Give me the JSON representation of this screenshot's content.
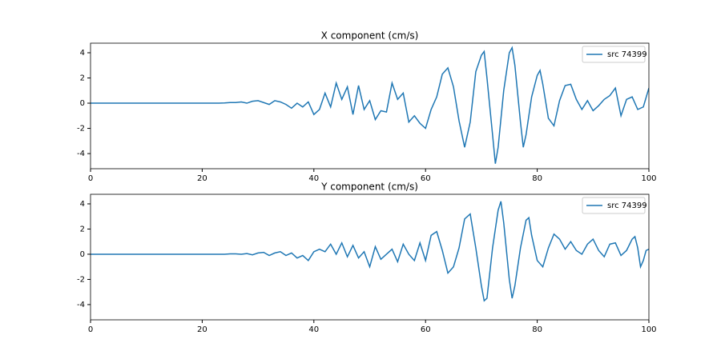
{
  "chart_data": [
    {
      "type": "line",
      "title": "X component (cm/s)",
      "x": [
        0,
        20,
        21,
        22,
        23,
        24,
        25,
        26,
        27,
        28,
        29,
        30,
        31,
        32,
        33,
        34,
        35,
        36,
        37,
        38,
        39,
        40,
        41,
        42,
        43,
        44,
        45,
        46,
        47,
        48,
        49,
        50,
        51,
        52,
        53,
        54,
        55,
        56,
        57,
        58,
        59,
        60,
        61,
        62,
        63,
        64,
        65,
        66,
        67,
        68,
        69,
        70,
        70.5,
        71,
        72,
        72.5,
        73,
        74,
        75,
        75.5,
        76,
        77,
        77.5,
        78,
        79,
        80,
        80.5,
        81,
        82,
        83,
        84,
        85,
        86,
        87,
        88,
        89,
        90,
        91,
        92,
        93,
        94,
        95,
        96,
        97,
        98,
        99,
        100
      ],
      "series": [
        {
          "name": "src 74399",
          "color": "#1f77b4",
          "values": [
            0,
            0,
            0,
            0,
            0,
            0.02,
            0.05,
            0.05,
            0.1,
            0,
            0.15,
            0.2,
            0.05,
            -0.1,
            0.2,
            0.1,
            -0.1,
            -0.4,
            0,
            -0.3,
            0.1,
            -0.9,
            -0.5,
            0.8,
            -0.3,
            1.6,
            0.3,
            1.3,
            -0.9,
            1.4,
            -0.5,
            0.2,
            -1.3,
            -0.6,
            -0.7,
            1.6,
            0.3,
            0.8,
            -1.5,
            -1.0,
            -1.6,
            -2.0,
            -0.5,
            0.5,
            2.3,
            2.8,
            1.3,
            -1.4,
            -3.5,
            -1.5,
            2.5,
            3.8,
            4.1,
            2.0,
            -2.5,
            -4.8,
            -3.5,
            1.0,
            4.0,
            4.4,
            3.0,
            -1.5,
            -3.5,
            -2.5,
            0.5,
            2.2,
            2.6,
            1.5,
            -1.2,
            -1.8,
            0.2,
            1.4,
            1.5,
            0.3,
            -0.5,
            0.2,
            -0.6,
            -0.2,
            0.3,
            0.6,
            1.2,
            -1.0,
            0.3,
            0.5,
            -0.5,
            -0.3,
            1.2
          ]
        }
      ],
      "xlim": [
        0,
        100
      ],
      "xticks": [
        0,
        20,
        40,
        60,
        80,
        100
      ],
      "ylim": [
        -5.2,
        4.76
      ],
      "yticks": [
        -4,
        -2,
        0,
        2,
        4
      ],
      "legend": "upper right"
    },
    {
      "type": "line",
      "title": "Y component (cm/s)",
      "x": [
        0,
        20,
        21,
        22,
        23,
        24,
        25,
        26,
        27,
        28,
        29,
        30,
        31,
        32,
        33,
        34,
        35,
        36,
        37,
        38,
        39,
        40,
        41,
        42,
        43,
        44,
        45,
        46,
        47,
        48,
        49,
        50,
        51,
        52,
        53,
        54,
        55,
        56,
        57,
        58,
        59,
        60,
        61,
        62,
        63,
        64,
        65,
        66,
        67,
        68,
        69,
        70,
        70.5,
        71,
        72,
        73,
        73.5,
        74,
        75,
        75.5,
        76,
        77,
        78,
        78.5,
        79,
        80,
        81,
        82,
        83,
        84,
        85,
        86,
        87,
        88,
        89,
        90,
        91,
        92,
        93,
        94,
        95,
        96,
        97,
        97.5,
        98,
        98.5,
        99,
        99.5,
        100
      ],
      "series": [
        {
          "name": "src 74399",
          "color": "#1f77b4",
          "values": [
            0,
            0,
            0,
            0,
            0,
            0,
            0.03,
            0.03,
            0,
            0.05,
            -0.05,
            0.1,
            0.15,
            -0.1,
            0.1,
            0.2,
            -0.1,
            0.1,
            -0.3,
            -0.1,
            -0.5,
            0.2,
            0.4,
            0.2,
            0.8,
            0,
            0.9,
            -0.2,
            0.7,
            -0.3,
            0.2,
            -1.0,
            0.6,
            -0.4,
            0,
            0.4,
            -0.6,
            0.8,
            0,
            -0.5,
            0.9,
            -0.5,
            1.5,
            1.8,
            0.3,
            -1.5,
            -1.0,
            0.5,
            2.8,
            3.2,
            0.5,
            -2.5,
            -3.7,
            -3.5,
            0.5,
            3.5,
            4.2,
            2.5,
            -2.0,
            -3.5,
            -2.5,
            0.5,
            2.7,
            2.9,
            1.5,
            -0.5,
            -1.0,
            0.5,
            1.6,
            1.2,
            0.4,
            1.0,
            0.3,
            0.0,
            0.8,
            1.2,
            0.3,
            -0.2,
            0.8,
            0.9,
            -0.1,
            0.3,
            1.2,
            1.4,
            0.5,
            -1.0,
            -0.5,
            0.3,
            0.4
          ]
        }
      ],
      "xlim": [
        0,
        100
      ],
      "xticks": [
        0,
        20,
        40,
        60,
        80,
        100
      ],
      "ylim": [
        -5.21,
        4.76
      ],
      "yticks": [
        -4,
        -2,
        0,
        2,
        4
      ],
      "legend": "upper right"
    }
  ]
}
